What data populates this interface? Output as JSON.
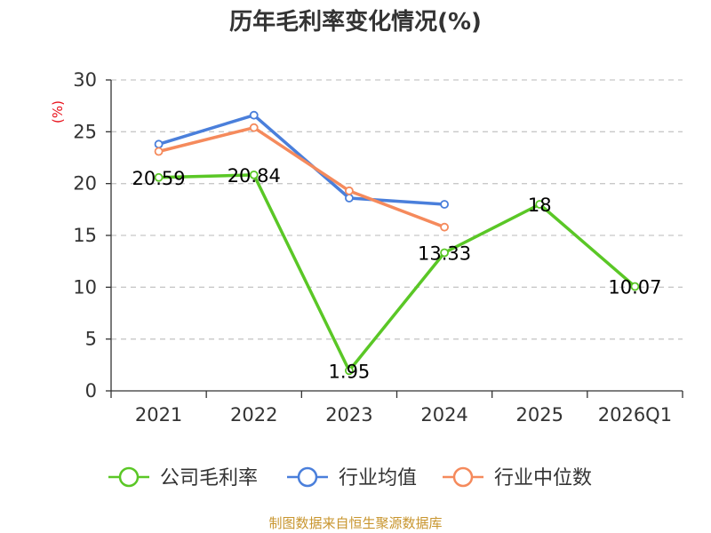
{
  "chart_data": {
    "type": "line",
    "title": "历年毛利率变化情况(%)",
    "unit_label": "(%)",
    "categories": [
      "2021",
      "2022",
      "2023",
      "2024",
      "2025",
      "2026Q1"
    ],
    "ylim": [
      0,
      30
    ],
    "yticks": [
      0,
      5,
      10,
      15,
      20,
      25,
      30
    ],
    "grid": true,
    "series": [
      {
        "name": "公司毛利率",
        "color": "#5ac726",
        "values": [
          20.59,
          20.84,
          1.95,
          13.33,
          18,
          10.07
        ],
        "labels": [
          "20.59",
          "20.84",
          "1.95",
          "13.33",
          "18",
          "10.07"
        ]
      },
      {
        "name": "行业均值",
        "color": "#4a7fdb",
        "values": [
          23.8,
          26.6,
          18.6,
          18.0,
          null,
          null
        ]
      },
      {
        "name": "行业中位数",
        "color": "#f58a5c",
        "values": [
          23.1,
          25.4,
          19.3,
          15.8,
          null,
          null
        ]
      }
    ],
    "legend_position": "bottom",
    "source": "制图数据来自恒生聚源数据库"
  }
}
